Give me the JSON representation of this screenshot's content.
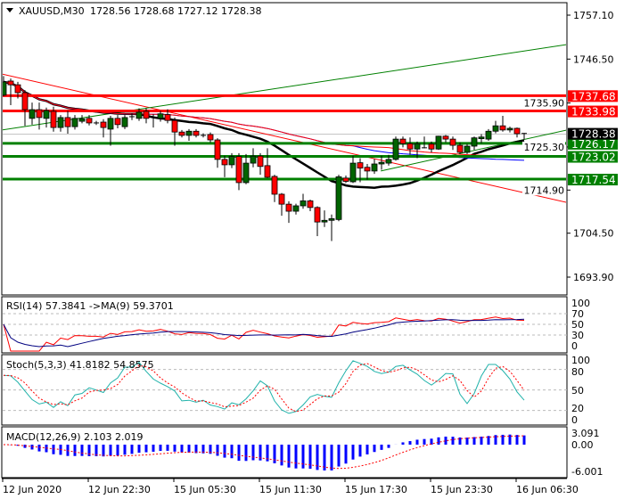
{
  "header": {
    "symbol": "XAUUSD,M30",
    "ohlc": "1728.56 1728.68 1727.12 1728.38"
  },
  "colors": {
    "bull": "#006400",
    "bear": "#ff0000",
    "resistance": "#ff0000",
    "support": "#008000",
    "current": "#000000",
    "ma_fast": "#000000",
    "ma_mid": "#0000ff",
    "ma_slow": "#ff0000"
  },
  "chart_data": {
    "type": "candlestick",
    "title": "XAUUSD,M30",
    "ylim": [
      1690.5,
      1760.0
    ],
    "price_ticks": [
      "1757.10",
      "1746.50",
      "1735.90",
      "1725.30",
      "1714.90",
      "1704.50",
      "1693.90"
    ],
    "price_tick_values": [
      1757.1,
      1746.5,
      1735.9,
      1725.3,
      1714.9,
      1704.5,
      1693.9
    ],
    "time_labels": [
      {
        "index": 0,
        "label": "12 Jun 2020"
      },
      {
        "index": 12,
        "label": "12 Jun 22:30"
      },
      {
        "index": 24,
        "label": "15 Jun 05:30"
      },
      {
        "index": 36,
        "label": "15 Jun 11:30"
      },
      {
        "index": 48,
        "label": "15 Jun 17:30"
      },
      {
        "index": 60,
        "label": "15 Jun 23:30"
      },
      {
        "index": 72,
        "label": "16 Jun 06:30"
      }
    ],
    "candles_ohlc": [
      [
        1737.8,
        1742.4,
        1737.5,
        1741.0
      ],
      [
        1741.2,
        1741.8,
        1735.4,
        1740.3
      ],
      [
        1740.3,
        1741.0,
        1737.0,
        1738.4
      ],
      [
        1738.4,
        1739.0,
        1730.4,
        1734.3
      ],
      [
        1732.2,
        1736.0,
        1730.7,
        1734.3
      ],
      [
        1734.3,
        1736.0,
        1729.5,
        1732.4
      ],
      [
        1732.2,
        1734.8,
        1730.0,
        1734.1
      ],
      [
        1733.9,
        1735.0,
        1729.0,
        1730.0
      ],
      [
        1730.0,
        1733.0,
        1729.0,
        1732.4
      ],
      [
        1732.4,
        1734.0,
        1728.5,
        1730.2
      ],
      [
        1730.2,
        1733.0,
        1729.5,
        1732.2
      ],
      [
        1731.5,
        1733.0,
        1731.0,
        1732.1
      ],
      [
        1732.2,
        1733.0,
        1730.5,
        1731.1
      ],
      [
        1731.1,
        1731.6,
        1730.6,
        1731.1
      ],
      [
        1731.3,
        1732.0,
        1727.6,
        1730.0
      ],
      [
        1729.6,
        1732.8,
        1725.6,
        1732.2
      ],
      [
        1732.2,
        1733.0,
        1729.8,
        1730.7
      ],
      [
        1730.2,
        1733.0,
        1729.6,
        1732.4
      ],
      [
        1732.4,
        1733.4,
        1731.8,
        1732.6
      ],
      [
        1732.2,
        1734.6,
        1731.6,
        1733.7
      ],
      [
        1733.9,
        1734.6,
        1731.0,
        1732.2
      ],
      [
        1732.4,
        1733.2,
        1730.0,
        1732.4
      ],
      [
        1732.2,
        1734.0,
        1731.4,
        1733.3
      ],
      [
        1733.1,
        1734.4,
        1731.0,
        1731.7
      ],
      [
        1731.7,
        1732.4,
        1725.6,
        1728.9
      ],
      [
        1728.9,
        1729.4,
        1727.6,
        1728.1
      ],
      [
        1728.1,
        1729.6,
        1726.8,
        1729.1
      ],
      [
        1729.1,
        1729.6,
        1727.6,
        1728.1
      ],
      [
        1728.1,
        1728.6,
        1727.6,
        1728.1
      ],
      [
        1728.3,
        1728.8,
        1726.4,
        1727.0
      ],
      [
        1727.0,
        1727.4,
        1720.3,
        1722.3
      ],
      [
        1722.3,
        1723.2,
        1718.0,
        1721.0
      ],
      [
        1721.0,
        1723.8,
        1720.2,
        1723.0
      ],
      [
        1723.0,
        1723.8,
        1714.9,
        1716.7
      ],
      [
        1716.7,
        1723.6,
        1716.3,
        1721.4
      ],
      [
        1721.4,
        1725.0,
        1720.4,
        1723.1
      ],
      [
        1723.1,
        1723.8,
        1718.6,
        1720.6
      ],
      [
        1720.8,
        1725.0,
        1717.8,
        1718.0
      ],
      [
        1718.2,
        1718.6,
        1712.0,
        1713.9
      ],
      [
        1713.9,
        1714.2,
        1708.7,
        1711.5
      ],
      [
        1711.5,
        1712.2,
        1707.0,
        1709.8
      ],
      [
        1709.8,
        1711.6,
        1709.0,
        1711.1
      ],
      [
        1711.1,
        1714.0,
        1710.4,
        1712.3
      ],
      [
        1712.3,
        1712.6,
        1709.8,
        1710.7
      ],
      [
        1710.7,
        1711.0,
        1703.8,
        1707.2
      ],
      [
        1707.2,
        1710.0,
        1706.0,
        1707.6
      ],
      [
        1707.6,
        1709.0,
        1702.6,
        1708.0
      ],
      [
        1707.8,
        1718.6,
        1707.4,
        1718.1
      ],
      [
        1717.8,
        1718.4,
        1716.6,
        1717.0
      ],
      [
        1716.9,
        1723.2,
        1716.6,
        1721.4
      ],
      [
        1721.5,
        1722.6,
        1716.8,
        1720.2
      ],
      [
        1720.4,
        1721.2,
        1717.4,
        1719.5
      ],
      [
        1719.5,
        1722.4,
        1718.8,
        1721.2
      ],
      [
        1721.2,
        1723.2,
        1719.8,
        1721.6
      ],
      [
        1721.4,
        1723.4,
        1720.8,
        1722.3
      ],
      [
        1722.3,
        1727.8,
        1722.0,
        1727.2
      ],
      [
        1727.2,
        1727.8,
        1725.2,
        1726.1
      ],
      [
        1726.1,
        1727.6,
        1723.4,
        1724.8
      ],
      [
        1724.8,
        1726.6,
        1722.6,
        1726.1
      ],
      [
        1725.0,
        1727.8,
        1725.0,
        1725.1
      ],
      [
        1726.0,
        1726.6,
        1724.0,
        1724.8
      ],
      [
        1724.8,
        1728.0,
        1724.6,
        1727.9
      ],
      [
        1727.9,
        1728.2,
        1726.4,
        1727.2
      ],
      [
        1727.2,
        1727.8,
        1724.6,
        1725.7
      ],
      [
        1725.7,
        1726.4,
        1723.6,
        1724.0
      ],
      [
        1724.0,
        1726.0,
        1723.6,
        1725.5
      ],
      [
        1725.5,
        1727.8,
        1724.6,
        1727.5
      ],
      [
        1727.3,
        1728.4,
        1726.2,
        1727.7
      ],
      [
        1727.2,
        1729.6,
        1726.8,
        1729.1
      ],
      [
        1729.1,
        1731.6,
        1728.6,
        1730.4
      ],
      [
        1730.4,
        1732.8,
        1729.0,
        1729.4
      ],
      [
        1729.4,
        1730.2,
        1728.8,
        1729.8
      ],
      [
        1729.8,
        1730.0,
        1727.6,
        1728.5
      ],
      [
        1728.56,
        1728.68,
        1727.12,
        1728.38
      ]
    ],
    "moving_averages": [
      {
        "name": "ma_fast",
        "period": 20,
        "color": "#000000"
      },
      {
        "name": "ma_mid",
        "period": 50,
        "color": "#0000ff"
      },
      {
        "name": "ma_slow",
        "period": 55,
        "color": "#ff0000"
      }
    ],
    "levels": [
      {
        "value": 1737.68,
        "label": "1737.68",
        "kind": "resistance",
        "color": "#ff0000"
      },
      {
        "value": 1733.98,
        "label": "1733.98",
        "kind": "resistance",
        "color": "#ff0000"
      },
      {
        "value": 1726.17,
        "label": "1726.17",
        "kind": "support",
        "color": "#008000"
      },
      {
        "value": 1723.02,
        "label": "1723.02",
        "kind": "support",
        "color": "#008000"
      },
      {
        "value": 1717.54,
        "label": "1717.54",
        "kind": "support",
        "color": "#008000"
      }
    ],
    "current_price": {
      "value": 1728.38,
      "label": "1728.38"
    },
    "trendlines": [
      {
        "name": "descending-red",
        "from": [
          -0.25,
          1742.9
        ],
        "to": [
          79,
          1711.9
        ],
        "color": "#ff0000"
      },
      {
        "name": "ascending-green-long",
        "from": [
          -0.25,
          1729.4
        ],
        "to": [
          79,
          1750.0
        ],
        "color": "#008000"
      },
      {
        "name": "ascending-green-short",
        "from": [
          52.9,
          1719.5
        ],
        "to": [
          79,
          1729.4
        ],
        "color": "#008000"
      }
    ],
    "indicators": {
      "rsi": {
        "label": "RSI(14) 57.3841  ->MA(9) 59.3701",
        "period": 14,
        "ma_period": 9,
        "levels": [
          70,
          50,
          30
        ],
        "tick_labels": [
          "100",
          "70",
          "50",
          "30",
          "0"
        ]
      },
      "stoch": {
        "label": "Stoch(5,3,3) 41.8182 54.8575",
        "k": 5,
        "d": 3,
        "slowing": 3,
        "levels": [
          80,
          50,
          20
        ],
        "tick_labels": [
          "100",
          "80",
          "50",
          "20",
          "0"
        ]
      },
      "macd": {
        "label": "MACD(12,26,9) 2.103 2.019",
        "fast": 12,
        "slow": 26,
        "signal": 9,
        "tick_labels": [
          "3.091",
          "0.00",
          "-6.001"
        ]
      }
    }
  }
}
